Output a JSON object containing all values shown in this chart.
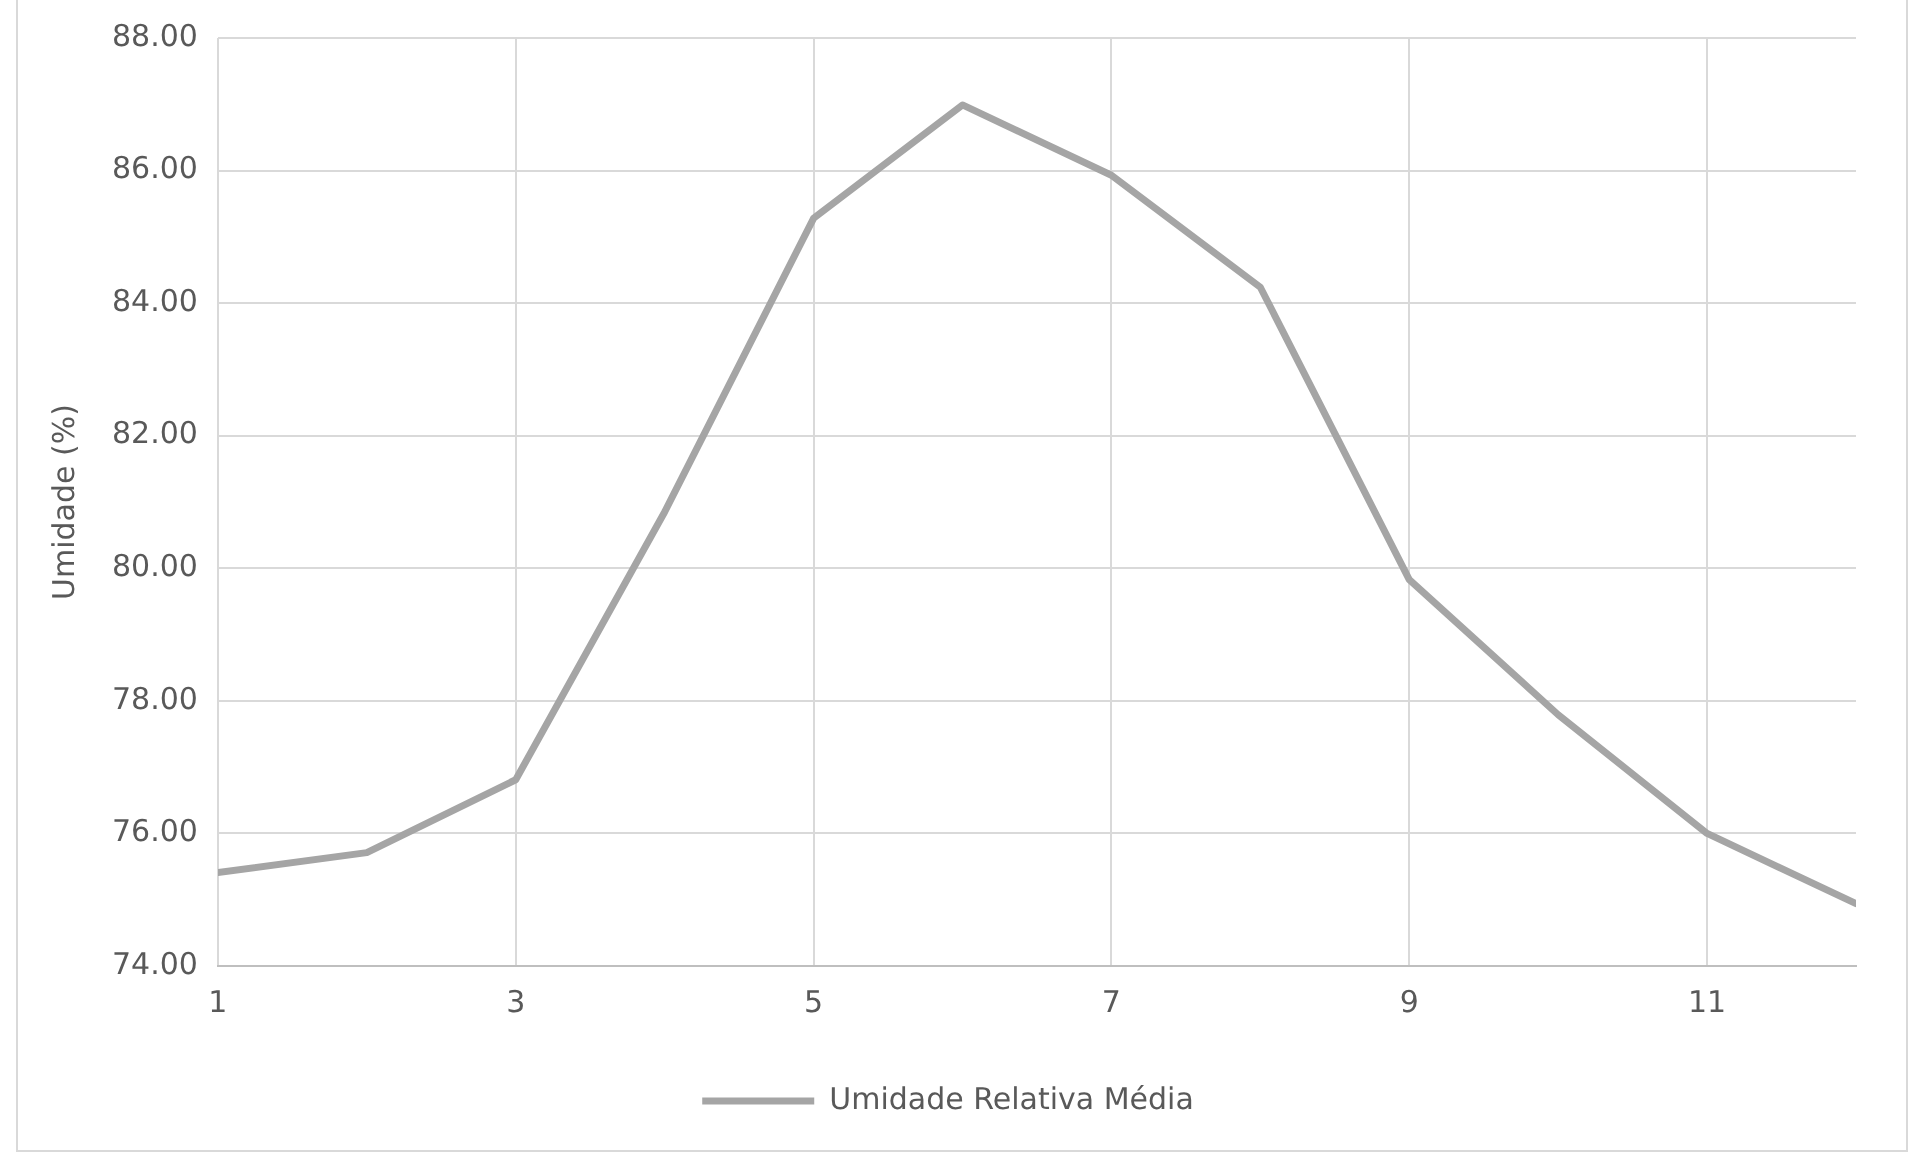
{
  "chart_data": {
    "type": "line",
    "ylabel": "Umidade (%)",
    "x": [
      1,
      2,
      3,
      4,
      5,
      6,
      7,
      8,
      9,
      10,
      11,
      12
    ],
    "xlim": [
      1,
      12
    ],
    "xticks": [
      1,
      3,
      5,
      7,
      9,
      11
    ],
    "ylim": [
      74,
      88
    ],
    "yticks": [
      {
        "value": 74,
        "label": "74.00"
      },
      {
        "value": 76,
        "label": "76.00"
      },
      {
        "value": 78,
        "label": "78.00"
      },
      {
        "value": 80,
        "label": "80.00"
      },
      {
        "value": 82,
        "label": "82.00"
      },
      {
        "value": 84,
        "label": "84.00"
      },
      {
        "value": 86,
        "label": "86.00"
      },
      {
        "value": 88,
        "label": "88.00"
      }
    ],
    "series": [
      {
        "name": "Umidade Relativa Média",
        "color": "#a5a5a5",
        "values": [
          75.41,
          75.71,
          76.81,
          80.85,
          85.28,
          86.99,
          85.93,
          84.24,
          79.83,
          77.79,
          76.0,
          74.94
        ]
      }
    ],
    "grid": true,
    "legend": "bottom",
    "marker": "none",
    "line_style": "solid"
  }
}
